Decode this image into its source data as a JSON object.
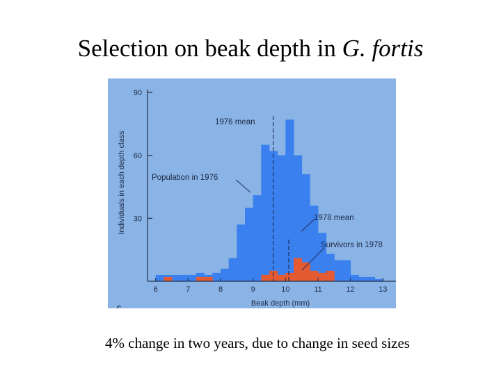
{
  "slide": {
    "title_main": "Selection on beak depth in ",
    "title_species": "G. fortis",
    "caption": "4% change in two years, due to change in seed sizes"
  },
  "chart_data": {
    "type": "bar",
    "xlabel": "Beak depth (mm)",
    "ylabel": "Individuals in each depth class",
    "panel_letter": "c",
    "xlim": [
      5.75,
      13.4
    ],
    "ylim": [
      0,
      90
    ],
    "x_ticks": [
      6,
      7,
      8,
      9,
      10,
      11,
      12,
      13
    ],
    "y_ticks": [
      30,
      60,
      90
    ],
    "bin_width": 0.25,
    "bin_starts": [
      6.0,
      6.25,
      6.5,
      6.75,
      7.0,
      7.25,
      7.5,
      7.75,
      8.0,
      8.25,
      8.5,
      8.75,
      9.0,
      9.25,
      9.5,
      9.75,
      10.0,
      10.25,
      10.5,
      10.75,
      11.0,
      11.25,
      11.5,
      11.75,
      12.0,
      12.25,
      12.5,
      12.75,
      13.0
    ],
    "series": [
      {
        "name": "Population in 1976",
        "color": "#3a80ef",
        "values": [
          3,
          3,
          3,
          3,
          3,
          4,
          3,
          4,
          6,
          11,
          27,
          35,
          41,
          65,
          62,
          60,
          77,
          60,
          51,
          36,
          23,
          13,
          10,
          10,
          3,
          2,
          2,
          1,
          0
        ]
      },
      {
        "name": "Survivors in 1978",
        "color": "#e45a33",
        "values": [
          0,
          2,
          0,
          0,
          0,
          2,
          2,
          0,
          0,
          0,
          0,
          0,
          0,
          3,
          5,
          3,
          4,
          11,
          9,
          5,
          4,
          5,
          0,
          0,
          0,
          0,
          0,
          0,
          0
        ]
      }
    ],
    "annotations": [
      {
        "text": "1976 mean",
        "x": 9.62
      },
      {
        "text": "1978 mean",
        "x": 10.1
      },
      {
        "text": "Population in 1976"
      },
      {
        "text": "Survivors in 1978"
      }
    ],
    "colors": {
      "panel_bg": "#8ab3e6",
      "axis": "#20304a",
      "label": "#1c2a44"
    }
  }
}
